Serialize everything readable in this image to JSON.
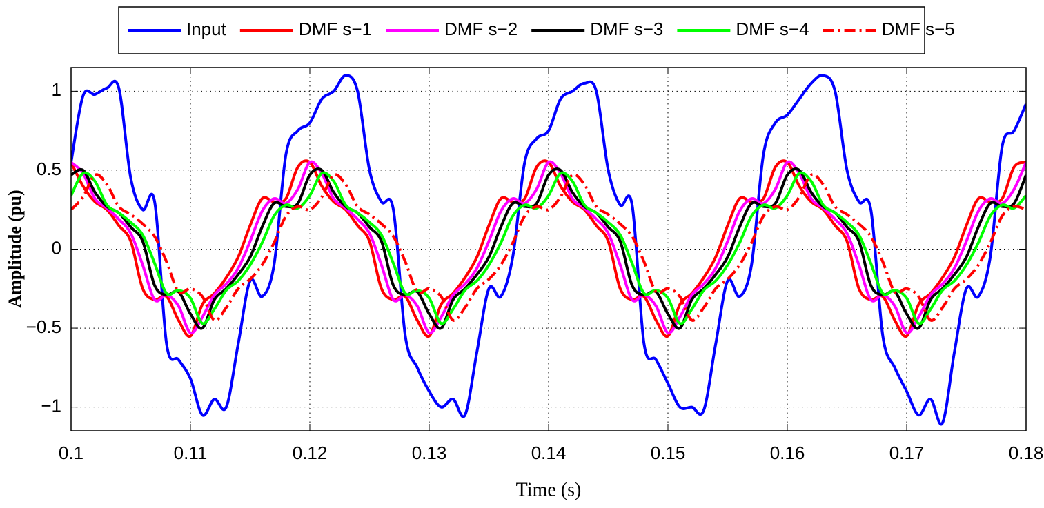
{
  "chart_data": {
    "type": "line",
    "xlabel": "Time (s)",
    "ylabel": "Amplitude (pu)",
    "xlim": [
      0.1,
      0.18
    ],
    "ylim": [
      -1.15,
      1.15
    ],
    "xticks": [
      0.1,
      0.11,
      0.12,
      0.13,
      0.14,
      0.15,
      0.16,
      0.17,
      0.18
    ],
    "yticks": [
      {
        "value": -1,
        "label": "−1"
      },
      {
        "value": -0.5,
        "label": "−0.5"
      },
      0,
      0.5,
      1
    ],
    "grid": true,
    "legend": "top-outside",
    "x": [
      0.1,
      0.101,
      0.102,
      0.103,
      0.104,
      0.105,
      0.106,
      0.107,
      0.108,
      0.109,
      0.11,
      0.111,
      0.112,
      0.113,
      0.114,
      0.115,
      0.116,
      0.117,
      0.118,
      0.119,
      0.12,
      0.121,
      0.122,
      0.123,
      0.124,
      0.125,
      0.126,
      0.127,
      0.128,
      0.129,
      0.13,
      0.131,
      0.132,
      0.133,
      0.134,
      0.135,
      0.136,
      0.137,
      0.138,
      0.139,
      0.14,
      0.141,
      0.142,
      0.143,
      0.144,
      0.145,
      0.146,
      0.147,
      0.148,
      0.149,
      0.15,
      0.151,
      0.152,
      0.153,
      0.154,
      0.155,
      0.156,
      0.157,
      0.158,
      0.159,
      0.16,
      0.161,
      0.162,
      0.163,
      0.164,
      0.165,
      0.166,
      0.167,
      0.168,
      0.169,
      0.17,
      0.171,
      0.172,
      0.173,
      0.174,
      0.175,
      0.176,
      0.177,
      0.178,
      0.179,
      0.18
    ],
    "series": [
      {
        "name": "Input",
        "color": "#0000ff",
        "linestyle": "solid",
        "values": [
          0.55,
          0.97,
          0.98,
          1.02,
          1.02,
          0.45,
          0.25,
          0.3,
          -0.6,
          -0.7,
          -0.82,
          -1.05,
          -0.95,
          -1.0,
          -0.6,
          -0.2,
          -0.3,
          -0.1,
          0.6,
          0.75,
          0.8,
          0.95,
          1.0,
          1.1,
          1.0,
          0.5,
          0.3,
          0.25,
          -0.55,
          -0.75,
          -0.9,
          -1.0,
          -0.95,
          -1.05,
          -0.65,
          -0.25,
          -0.3,
          -0.05,
          0.55,
          0.7,
          0.75,
          0.95,
          1.0,
          1.05,
          1.0,
          0.5,
          0.28,
          0.28,
          -0.6,
          -0.7,
          -0.85,
          -1.0,
          -1.0,
          -1.02,
          -0.6,
          -0.2,
          -0.3,
          -0.1,
          0.6,
          0.8,
          0.85,
          0.95,
          1.05,
          1.1,
          1.0,
          0.5,
          0.3,
          0.25,
          -0.55,
          -0.75,
          -0.9,
          -1.05,
          -0.95,
          -1.1,
          -0.65,
          -0.25,
          -0.3,
          -0.05,
          0.65,
          0.75,
          0.92
        ]
      },
      {
        "name": "DMF s−1",
        "color": "#ff0000",
        "linestyle": "solid",
        "values": [
          0.55,
          0.4,
          0.3,
          0.25,
          0.15,
          0.05,
          -0.25,
          -0.32,
          -0.3,
          -0.45,
          -0.55,
          -0.35,
          -0.28,
          -0.18,
          -0.05,
          0.15,
          0.32,
          0.3,
          0.32,
          0.52,
          0.55,
          0.4,
          0.3,
          0.25,
          0.15,
          0.05,
          -0.25,
          -0.32,
          -0.3,
          -0.45,
          -0.55,
          -0.35,
          -0.28,
          -0.18,
          -0.05,
          0.15,
          0.32,
          0.3,
          0.32,
          0.52,
          0.55,
          0.4,
          0.3,
          0.25,
          0.15,
          0.05,
          -0.25,
          -0.32,
          -0.3,
          -0.45,
          -0.55,
          -0.35,
          -0.28,
          -0.18,
          -0.05,
          0.15,
          0.32,
          0.3,
          0.32,
          0.52,
          0.55,
          0.4,
          0.3,
          0.25,
          0.15,
          0.05,
          -0.25,
          -0.32,
          -0.3,
          -0.45,
          -0.55,
          -0.35,
          -0.28,
          -0.18,
          -0.05,
          0.15,
          0.32,
          0.3,
          0.32,
          0.52,
          0.55
        ]
      },
      {
        "name": "DMF s−2",
        "color": "#ff00ff",
        "linestyle": "solid",
        "values": [
          0.55,
          0.48,
          0.32,
          0.26,
          0.19,
          0.1,
          -0.1,
          -0.32,
          -0.29,
          -0.36,
          -0.53,
          -0.43,
          -0.29,
          -0.22,
          -0.12,
          0.05,
          0.24,
          0.32,
          0.29,
          0.38,
          0.55,
          0.48,
          0.32,
          0.26,
          0.19,
          0.1,
          -0.1,
          -0.32,
          -0.29,
          -0.36,
          -0.53,
          -0.43,
          -0.29,
          -0.22,
          -0.12,
          0.05,
          0.24,
          0.32,
          0.29,
          0.38,
          0.55,
          0.48,
          0.32,
          0.26,
          0.19,
          0.1,
          -0.1,
          -0.32,
          -0.29,
          -0.36,
          -0.53,
          -0.43,
          -0.29,
          -0.22,
          -0.12,
          0.05,
          0.24,
          0.32,
          0.29,
          0.38,
          0.55,
          0.48,
          0.32,
          0.26,
          0.19,
          0.1,
          -0.1,
          -0.32,
          -0.29,
          -0.36,
          -0.53,
          -0.43,
          -0.29,
          -0.22,
          -0.12,
          0.05,
          0.24,
          0.32,
          0.29,
          0.38,
          0.55
        ]
      },
      {
        "name": "DMF s−3",
        "color": "#000000",
        "linestyle": "solid",
        "values": [
          0.47,
          0.5,
          0.36,
          0.27,
          0.23,
          0.14,
          0.05,
          -0.23,
          -0.29,
          -0.27,
          -0.41,
          -0.5,
          -0.32,
          -0.25,
          -0.16,
          -0.05,
          0.14,
          0.29,
          0.27,
          0.29,
          0.47,
          0.5,
          0.36,
          0.27,
          0.23,
          0.14,
          0.05,
          -0.23,
          -0.29,
          -0.27,
          -0.41,
          -0.5,
          -0.32,
          -0.25,
          -0.16,
          -0.05,
          0.14,
          0.29,
          0.27,
          0.29,
          0.47,
          0.5,
          0.36,
          0.27,
          0.23,
          0.14,
          0.05,
          -0.23,
          -0.29,
          -0.27,
          -0.41,
          -0.5,
          -0.32,
          -0.25,
          -0.16,
          -0.05,
          0.14,
          0.29,
          0.27,
          0.29,
          0.47,
          0.5,
          0.36,
          0.27,
          0.23,
          0.14,
          0.05,
          -0.23,
          -0.29,
          -0.27,
          -0.41,
          -0.5,
          -0.32,
          -0.25,
          -0.16,
          -0.05,
          0.14,
          0.29,
          0.27,
          0.29,
          0.47
        ]
      },
      {
        "name": "DMF s−4",
        "color": "#00ff00",
        "linestyle": "solid",
        "values": [
          0.34,
          0.48,
          0.43,
          0.28,
          0.23,
          0.17,
          0.09,
          -0.09,
          -0.28,
          -0.26,
          -0.31,
          -0.47,
          -0.38,
          -0.26,
          -0.2,
          -0.1,
          0.04,
          0.21,
          0.28,
          0.26,
          0.34,
          0.48,
          0.43,
          0.28,
          0.23,
          0.17,
          0.09,
          -0.09,
          -0.28,
          -0.26,
          -0.31,
          -0.47,
          -0.38,
          -0.26,
          -0.2,
          -0.1,
          0.04,
          0.21,
          0.28,
          0.26,
          0.34,
          0.48,
          0.43,
          0.28,
          0.23,
          0.17,
          0.09,
          -0.09,
          -0.28,
          -0.26,
          -0.31,
          -0.47,
          -0.38,
          -0.26,
          -0.2,
          -0.1,
          0.04,
          0.21,
          0.28,
          0.26,
          0.34,
          0.48,
          0.43,
          0.28,
          0.23,
          0.17,
          0.09,
          -0.09,
          -0.28,
          -0.26,
          -0.31,
          -0.47,
          -0.38,
          -0.26,
          -0.2,
          -0.1,
          0.04,
          0.21,
          0.28,
          0.26,
          0.34
        ]
      },
      {
        "name": "DMF s−5",
        "color": "#ff0000",
        "linestyle": "dashdot",
        "values": [
          0.25,
          0.33,
          0.47,
          0.41,
          0.27,
          0.22,
          0.16,
          0.08,
          -0.08,
          -0.27,
          -0.25,
          -0.3,
          -0.45,
          -0.37,
          -0.25,
          -0.19,
          -0.1,
          0.04,
          0.21,
          0.27,
          0.25,
          0.33,
          0.47,
          0.41,
          0.27,
          0.22,
          0.16,
          0.08,
          -0.08,
          -0.27,
          -0.25,
          -0.3,
          -0.45,
          -0.37,
          -0.25,
          -0.19,
          -0.1,
          0.04,
          0.21,
          0.27,
          0.25,
          0.33,
          0.47,
          0.41,
          0.27,
          0.22,
          0.16,
          0.08,
          -0.08,
          -0.27,
          -0.25,
          -0.3,
          -0.45,
          -0.37,
          -0.25,
          -0.19,
          -0.1,
          0.04,
          0.21,
          0.27,
          0.25,
          0.33,
          0.47,
          0.41,
          0.27,
          0.22,
          0.16,
          0.08,
          -0.08,
          -0.27,
          -0.25,
          -0.3,
          -0.45,
          -0.37,
          -0.25,
          -0.19,
          -0.1,
          0.04,
          0.21,
          0.27,
          0.25
        ]
      }
    ]
  }
}
